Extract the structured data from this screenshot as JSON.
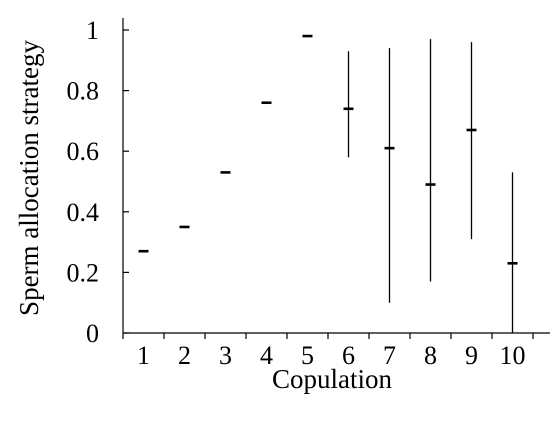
{
  "chart_data": {
    "type": "scatter",
    "title": "",
    "xlabel": "Copulation",
    "ylabel": "Sperm allocation strategy",
    "categories": [
      "1",
      "2",
      "3",
      "4",
      "5",
      "6",
      "7",
      "8",
      "9",
      "10"
    ],
    "y_ticks": [
      "0",
      "0.2",
      "0.4",
      "0.6",
      "0.8",
      "1"
    ],
    "ylim": [
      0,
      1
    ],
    "grid": false,
    "legend": "none",
    "series": [
      {
        "values": [
          0.27,
          0.35,
          0.53,
          0.76,
          0.98,
          0.74,
          0.61,
          0.49,
          0.67,
          0.23
        ],
        "lower": [
          0.27,
          0.35,
          0.53,
          0.76,
          0.98,
          0.58,
          0.1,
          0.17,
          0.31,
          0.0
        ],
        "upper": [
          0.27,
          0.35,
          0.53,
          0.76,
          0.98,
          0.93,
          0.94,
          0.97,
          0.96,
          0.53
        ]
      }
    ],
    "colors": {
      "marks": "#000000",
      "axes": "#000000"
    }
  }
}
